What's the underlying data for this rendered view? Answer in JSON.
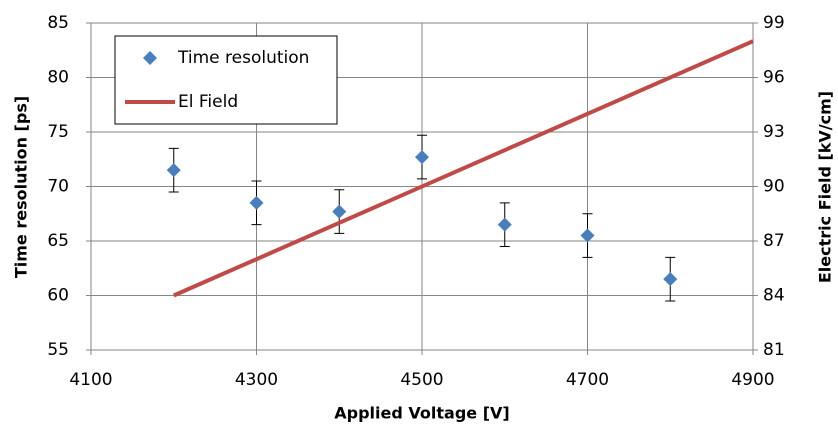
{
  "chart_data": {
    "type": "scatter-line",
    "xlabel": "Applied Voltage [V]",
    "ylabel": "Time resolution [ps]",
    "y2label": "Electric Field [kV/cm]",
    "xlim": [
      4100,
      4900
    ],
    "xticks": [
      4100,
      4300,
      4500,
      4700,
      4900
    ],
    "ylim": [
      55,
      85
    ],
    "yticks": [
      55,
      60,
      65,
      70,
      75,
      80,
      85
    ],
    "y2lim": [
      81,
      99
    ],
    "y2ticks": [
      81,
      84,
      87,
      90,
      93,
      96,
      99
    ],
    "grid": true,
    "legend": "upper-left",
    "series": [
      {
        "name": "Time resolution",
        "color": "#4a7ebb",
        "type": "scatter",
        "x": [
          4200,
          4300,
          4400,
          4500,
          4600,
          4700,
          4800
        ],
        "values": [
          71.5,
          68.5,
          67.7,
          72.7,
          66.5,
          65.5,
          61.5
        ],
        "errors": [
          2,
          2,
          2,
          2,
          2,
          2,
          2
        ]
      },
      {
        "name": "El Field",
        "color": "#be4b48",
        "type": "line",
        "axis": "y2",
        "x": [
          4200,
          4900
        ],
        "values": [
          84,
          98
        ]
      }
    ]
  }
}
